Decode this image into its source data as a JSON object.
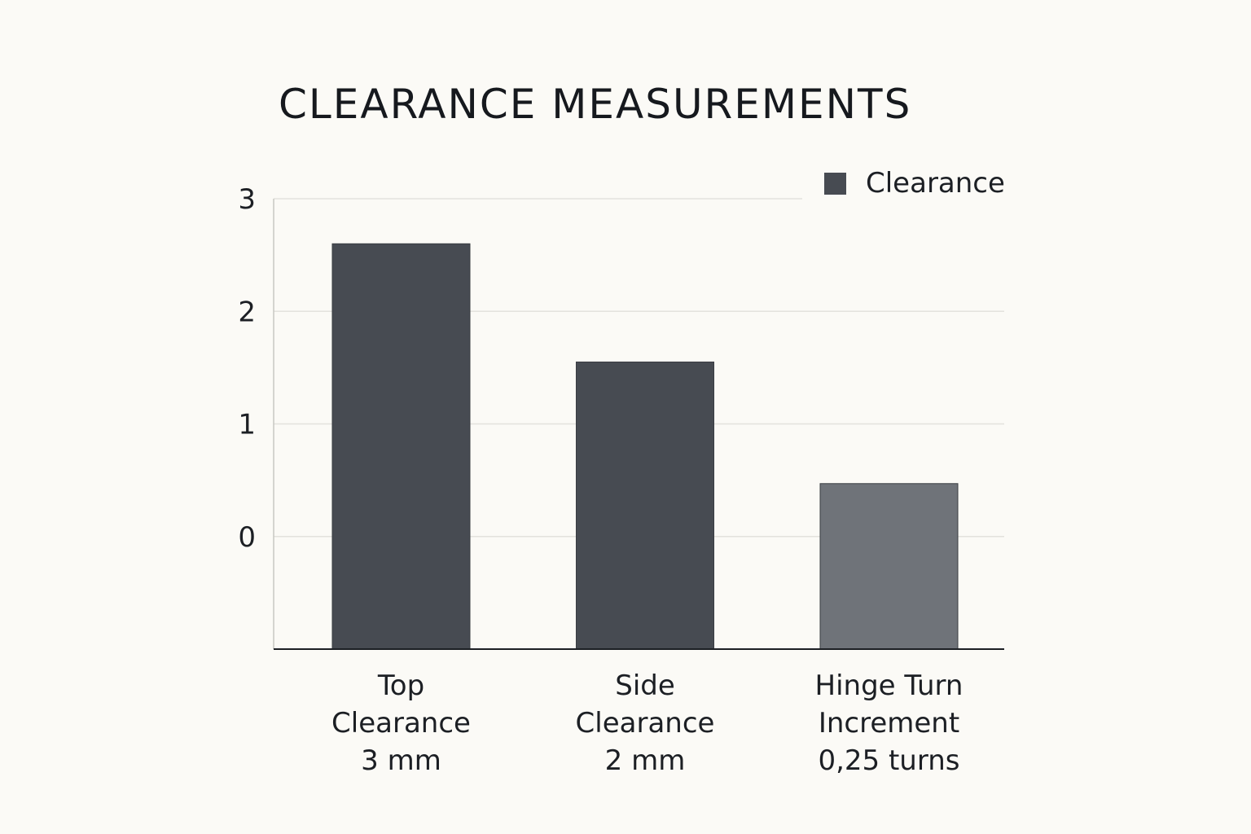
{
  "chart_data": {
    "type": "bar",
    "title": "CLEARANCE MEASUREMENTS",
    "xlabel": "",
    "ylabel": "",
    "legend": {
      "placement": "top-right",
      "entries": [
        "Clearance"
      ]
    },
    "yticks": [
      "3",
      "2",
      "1",
      "0"
    ],
    "ylim": [
      -1,
      3
    ],
    "grid": true,
    "categories": [
      [
        "Top",
        "Clearance",
        "3 mm"
      ],
      [
        "Side",
        "Clearance",
        "2 mm"
      ],
      [
        "Hinge Turn",
        "Increment",
        "0,25 turns"
      ]
    ],
    "series": [
      {
        "name": "Clearance",
        "values": [
          2.6,
          1.55,
          0.47
        ]
      }
    ],
    "colors": {
      "bar": "#474b52",
      "bar_highlight": "#6f7379",
      "grid": "#e3e2dd",
      "axis": "#1c1f24"
    }
  }
}
